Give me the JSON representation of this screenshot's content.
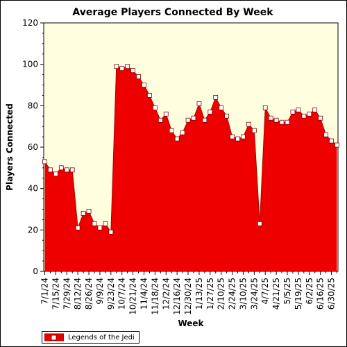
{
  "chart_data": {
    "type": "area",
    "title": "Average Players Connected By Week",
    "xlabel": "Week",
    "ylabel": "Players Connected",
    "ylim": [
      0,
      120
    ],
    "yticks": [
      0,
      20,
      40,
      60,
      80,
      100,
      120
    ],
    "grid": false,
    "legend_position": "bottom-left",
    "colors": {
      "fill": "#ee0000",
      "line": "#aa0000",
      "marker_fill": "#ffffff",
      "marker_stroke": "#880000",
      "plot_background": "#ffffe0"
    },
    "x": [
      "7/1/24",
      "7/8/24",
      "7/15/24",
      "7/22/24",
      "7/29/24",
      "8/5/24",
      "8/12/24",
      "8/19/24",
      "8/26/24",
      "9/2/24",
      "9/9/24",
      "9/16/24",
      "9/23/24",
      "9/30/24",
      "10/7/24",
      "10/14/24",
      "10/21/24",
      "10/28/24",
      "11/4/24",
      "11/11/24",
      "11/18/24",
      "11/25/24",
      "12/2/24",
      "12/9/24",
      "12/16/24",
      "12/23/24",
      "12/30/24",
      "1/6/25",
      "1/13/25",
      "1/20/25",
      "1/27/25",
      "2/3/25",
      "2/10/25",
      "2/17/25",
      "2/24/25",
      "3/3/25",
      "3/10/25",
      "3/17/25",
      "3/24/25",
      "3/31/25",
      "4/7/25",
      "4/14/25",
      "4/21/25",
      "4/28/25",
      "5/5/25",
      "5/12/25",
      "5/19/25",
      "5/26/25",
      "6/2/25",
      "6/9/25",
      "6/16/25",
      "6/23/25",
      "6/30/25",
      "7/7/25"
    ],
    "x_tick_labels": [
      "7/1/24",
      "7/15/24",
      "7/29/24",
      "8/12/24",
      "8/26/24",
      "9/9/24",
      "9/23/24",
      "10/7/24",
      "10/21/24",
      "11/4/24",
      "11/18/24",
      "12/2/24",
      "12/16/24",
      "12/30/24",
      "1/13/25",
      "1/27/25",
      "2/10/25",
      "2/24/25",
      "3/10/25",
      "3/24/25",
      "4/7/25",
      "4/21/25",
      "5/5/25",
      "5/19/25",
      "6/2/25",
      "6/16/25",
      "6/30/25"
    ],
    "series": [
      {
        "name": "Legends of the Jedi",
        "values": [
          53,
          49,
          47,
          50,
          49,
          49,
          21,
          28,
          29,
          23,
          21,
          23,
          19,
          99,
          98,
          99,
          97,
          94,
          90,
          85,
          79,
          73,
          76,
          68,
          64,
          67,
          73,
          74,
          81,
          73,
          77,
          84,
          79,
          75,
          65,
          64,
          65,
          71,
          68,
          23,
          79,
          74,
          73,
          72,
          72,
          77,
          78,
          75,
          76,
          78,
          74,
          66,
          63,
          61
        ]
      }
    ]
  }
}
